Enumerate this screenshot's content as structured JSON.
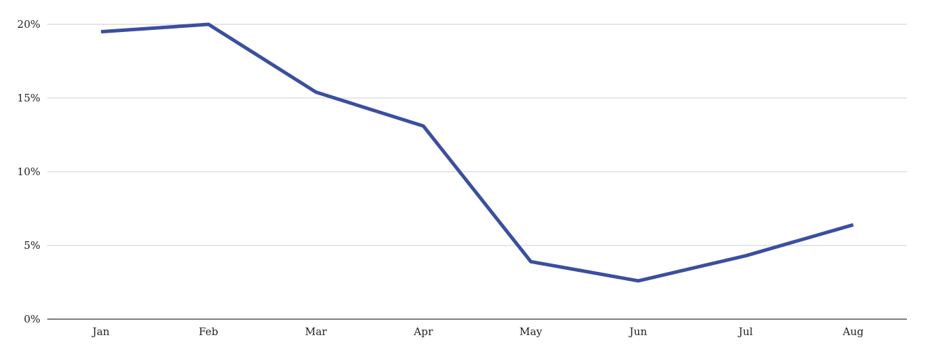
{
  "chart_data": {
    "type": "line",
    "title": "",
    "xlabel": "",
    "ylabel": "",
    "categories": [
      "Jan",
      "Feb",
      "Mar",
      "Apr",
      "May",
      "Jun",
      "Jul",
      "Aug"
    ],
    "series": [
      {
        "values": [
          19.5,
          20.0,
          15.4,
          13.1,
          3.9,
          2.6,
          4.3,
          6.4
        ],
        "color": "#3a4fa0"
      }
    ],
    "ylim": [
      0,
      20
    ],
    "yticks": [
      0,
      5,
      10,
      15,
      20
    ],
    "ytick_labels": [
      "0%",
      "5%",
      "10%",
      "15%",
      "20%"
    ],
    "grid": true,
    "legend": "none"
  }
}
